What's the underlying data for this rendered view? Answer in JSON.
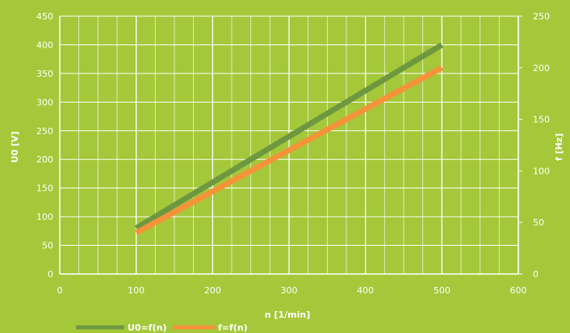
{
  "chart_data": {
    "type": "line",
    "title": "",
    "xlabel": "n [1/min]",
    "ylabel": "U0 [V]",
    "y2label": "f [Hz]",
    "xlim": [
      0,
      600
    ],
    "ylim": [
      0,
      450
    ],
    "y2lim": [
      0,
      250
    ],
    "x_ticks": [
      0,
      100,
      200,
      300,
      400,
      500,
      600
    ],
    "y_ticks": [
      0,
      50,
      100,
      150,
      200,
      250,
      300,
      350,
      400,
      450
    ],
    "y2_ticks": [
      0,
      50,
      100,
      150,
      200,
      250
    ],
    "grid": true,
    "legend_position": "bottom-left",
    "series": [
      {
        "name": "U0=f(n)",
        "axis": "left",
        "color": "#6e9840",
        "x": [
          100,
          500
        ],
        "values": [
          80,
          400
        ]
      },
      {
        "name": "f=f(n)",
        "axis": "right",
        "color": "#f5923a",
        "x": [
          100,
          500
        ],
        "values": [
          40,
          200
        ]
      }
    ]
  }
}
